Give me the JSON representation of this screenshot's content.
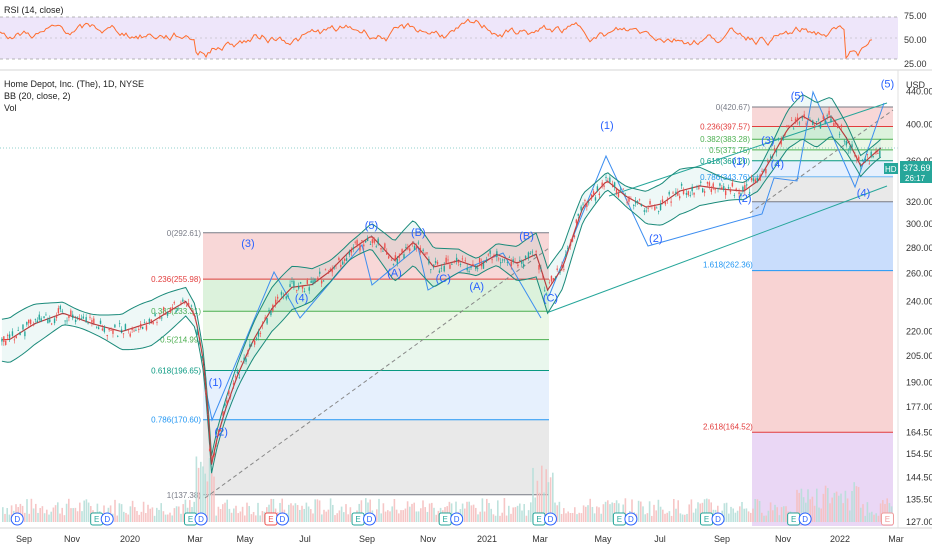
{
  "rsi_panel": {
    "title": "RSI (14, close)",
    "ticks": [
      "75.00",
      "50.00",
      "25.00"
    ],
    "band_color": "#d9c7f3",
    "line_color": "#ff6d2e"
  },
  "main_panel": {
    "title": "Home Depot, Inc. (The), 1D, NYSE",
    "indicator": "BB (20, close, 2)",
    "vol_label": "Vol",
    "currency": "USD",
    "ticker_tag": "HD",
    "last_price": "373.69",
    "countdown": "26:17"
  },
  "chart_data": {
    "type": "line",
    "y_scale": "log",
    "ylim": [
      127,
      460
    ],
    "y_ticks": [
      "440.00",
      "400.00",
      "360.00",
      "320.00",
      "300.00",
      "280.00",
      "260.00",
      "240.00",
      "220.00",
      "205.00",
      "190.00",
      "177.00",
      "164.50",
      "154.50",
      "144.50",
      "135.50",
      "127.00"
    ],
    "x_ticks": [
      "Sep",
      "Nov",
      "2020",
      "Mar",
      "May",
      "Jul",
      "Sep",
      "Nov",
      "2021",
      "Mar",
      "May",
      "Jul",
      "Sep",
      "Nov",
      "2022",
      "Mar"
    ],
    "series": [
      {
        "values": [
          {
            "x": "2019-08-20",
            "y": 215
          },
          {
            "x": "2019-09-15",
            "y": 225
          },
          {
            "x": "2019-10-15",
            "y": 232
          },
          {
            "x": "2019-11-15",
            "y": 225
          },
          {
            "x": "2019-12-15",
            "y": 220
          },
          {
            "x": "2020-01-15",
            "y": 226
          },
          {
            "x": "2020-02-20",
            "y": 240
          },
          {
            "x": "2020-03-01",
            "y": 230
          },
          {
            "x": "2020-03-10",
            "y": 200
          },
          {
            "x": "2020-03-18",
            "y": 150
          },
          {
            "x": "2020-03-24",
            "y": 162
          },
          {
            "x": "2020-04-01",
            "y": 175
          },
          {
            "x": "2020-04-15",
            "y": 195
          },
          {
            "x": "2020-05-01",
            "y": 215
          },
          {
            "x": "2020-05-20",
            "y": 235
          },
          {
            "x": "2020-06-10",
            "y": 250
          },
          {
            "x": "2020-07-01",
            "y": 252
          },
          {
            "x": "2020-07-20",
            "y": 262
          },
          {
            "x": "2020-08-10",
            "y": 278
          },
          {
            "x": "2020-09-01",
            "y": 290
          },
          {
            "x": "2020-09-25",
            "y": 270
          },
          {
            "x": "2020-10-15",
            "y": 285
          },
          {
            "x": "2020-11-05",
            "y": 265
          },
          {
            "x": "2020-12-01",
            "y": 270
          },
          {
            "x": "2020-12-20",
            "y": 265
          },
          {
            "x": "2021-01-10",
            "y": 275
          },
          {
            "x": "2021-01-31",
            "y": 268
          },
          {
            "x": "2021-02-20",
            "y": 275
          },
          {
            "x": "2021-03-04",
            "y": 248
          },
          {
            "x": "2021-03-20",
            "y": 265
          },
          {
            "x": "2021-04-10",
            "y": 315
          },
          {
            "x": "2021-05-05",
            "y": 340
          },
          {
            "x": "2021-05-25",
            "y": 325
          },
          {
            "x": "2021-06-15",
            "y": 315
          },
          {
            "x": "2021-07-01",
            "y": 318
          },
          {
            "x": "2021-07-20",
            "y": 330
          },
          {
            "x": "2021-08-10",
            "y": 335
          },
          {
            "x": "2021-09-01",
            "y": 332
          },
          {
            "x": "2021-09-25",
            "y": 330
          },
          {
            "x": "2021-10-10",
            "y": 340
          },
          {
            "x": "2021-10-25",
            "y": 365
          },
          {
            "x": "2021-11-10",
            "y": 395
          },
          {
            "x": "2021-11-25",
            "y": 410
          },
          {
            "x": "2021-12-10",
            "y": 400
          },
          {
            "x": "2021-12-25",
            "y": 410
          },
          {
            "x": "2022-01-10",
            "y": 385
          },
          {
            "x": "2022-01-25",
            "y": 355
          },
          {
            "x": "2022-02-05",
            "y": 365
          },
          {
            "x": "2022-02-15",
            "y": 373.69
          }
        ]
      }
    ]
  },
  "fib_2020": {
    "levels": [
      {
        "label": "0(292.61)",
        "price": 292.61,
        "color": "#787b86",
        "fill": "#f5c6c6"
      },
      {
        "label": "0.236(255.98)",
        "price": 255.98,
        "color": "#e23c3c",
        "fill": "#cdeccd"
      },
      {
        "label": "0.382(233.31)",
        "price": 233.31,
        "color": "#4caf50",
        "fill": "#e3f3dc"
      },
      {
        "label": "0.5(214.99)",
        "price": 214.99,
        "color": "#4caf50",
        "fill": "#dff3e6"
      },
      {
        "label": "0.618(196.65)",
        "price": 196.65,
        "color": "#089981",
        "fill": "#dbeafc"
      },
      {
        "label": "0.786(170.60)",
        "price": 170.6,
        "color": "#2196f3",
        "fill": "#e0e0e0"
      },
      {
        "label": "1(137.38)",
        "price": 137.38,
        "color": "#787b86",
        "fill": "none"
      }
    ]
  },
  "fib_2021": {
    "levels": [
      {
        "label": "0(420.67)",
        "price": 420.67,
        "color": "#787b86",
        "fill": "#f5c6c6"
      },
      {
        "label": "0.236(397.57)",
        "price": 397.57,
        "color": "#e23c3c",
        "fill": "#cdeccd"
      },
      {
        "label": "0.382(383.28)",
        "price": 383.28,
        "color": "#4caf50",
        "fill": "#e3f3dc"
      },
      {
        "label": "0.5(371.75)",
        "price": 371.75,
        "color": "#4caf50",
        "fill": "#dff3e6"
      },
      {
        "label": "0.618(360.20)",
        "price": 360.2,
        "color": "#089981",
        "fill": "#dbeafc"
      },
      {
        "label": "0.786(343.76)",
        "price": 343.76,
        "color": "#2196f3",
        "fill": "#e0e0e0"
      }
    ],
    "extensions": [
      {
        "label": "1.618(262.36)",
        "price": 262.36,
        "color": "#2196f3"
      },
      {
        "label": "2.618(164.52)",
        "price": 164.52,
        "color": "#e23c3c"
      }
    ]
  },
  "wave_labels": [
    {
      "text": "(1)",
      "x": "2020-03-22",
      "y": 188
    },
    {
      "text": "(2)",
      "x": "2020-03-28",
      "y": 163
    },
    {
      "text": "(3)",
      "x": "2020-04-25",
      "y": 281
    },
    {
      "text": "(4)",
      "x": "2020-06-20",
      "y": 240
    },
    {
      "text": "(5)",
      "x": "2020-09-01",
      "y": 296
    },
    {
      "text": "(A)",
      "x": "2020-09-25",
      "y": 258
    },
    {
      "text": "(B)",
      "x": "2020-10-20",
      "y": 290
    },
    {
      "text": "(C)",
      "x": "2020-11-15",
      "y": 254
    },
    {
      "text": "(A)",
      "x": "2020-12-20",
      "y": 248
    },
    {
      "text": "(B)",
      "x": "2021-02-10",
      "y": 287
    },
    {
      "text": "(C)",
      "x": "2021-03-07",
      "y": 240
    },
    {
      "text": "(1)",
      "x": "2021-05-05",
      "y": 395
    },
    {
      "text": "(2)",
      "x": "2021-06-25",
      "y": 285
    },
    {
      "text": "(1)",
      "x": "2021-09-20",
      "y": 356
    },
    {
      "text": "(2)",
      "x": "2021-09-26",
      "y": 320
    },
    {
      "text": "(3)",
      "x": "2021-10-20",
      "y": 378
    },
    {
      "text": "(4)",
      "x": "2021-10-30",
      "y": 353
    },
    {
      "text": "(5)",
      "x": "2021-11-20",
      "y": 430
    },
    {
      "text": "(4)",
      "x": "2022-01-28",
      "y": 325
    },
    {
      "text": "(5)",
      "x": "2022-02-22",
      "y": 445
    }
  ],
  "events": [
    {
      "text": "D",
      "x": "2019-08-28",
      "type": "dividend"
    },
    {
      "text": "E",
      "x": "2019-11-19",
      "type": "earnings"
    },
    {
      "text": "D",
      "x": "2019-11-30",
      "type": "dividend"
    },
    {
      "text": "E",
      "x": "2020-02-25",
      "type": "earnings"
    },
    {
      "text": "D",
      "x": "2020-03-07",
      "type": "dividend"
    },
    {
      "text": "E",
      "x": "2020-05-19",
      "type": "earnings-red"
    },
    {
      "text": "D",
      "x": "2020-05-31",
      "type": "dividend"
    },
    {
      "text": "E",
      "x": "2020-08-18",
      "type": "earnings"
    },
    {
      "text": "D",
      "x": "2020-08-30",
      "type": "dividend"
    },
    {
      "text": "E",
      "x": "2020-11-17",
      "type": "earnings"
    },
    {
      "text": "D",
      "x": "2020-11-29",
      "type": "dividend"
    },
    {
      "text": "E",
      "x": "2021-02-23",
      "type": "earnings"
    },
    {
      "text": "D",
      "x": "2021-03-07",
      "type": "dividend"
    },
    {
      "text": "E",
      "x": "2021-05-18",
      "type": "earnings"
    },
    {
      "text": "D",
      "x": "2021-05-30",
      "type": "dividend"
    },
    {
      "text": "E",
      "x": "2021-08-17",
      "type": "earnings"
    },
    {
      "text": "D",
      "x": "2021-08-29",
      "type": "dividend"
    },
    {
      "text": "E",
      "x": "2021-11-16",
      "type": "earnings"
    },
    {
      "text": "D",
      "x": "2021-11-28",
      "type": "dividend"
    },
    {
      "text": "E",
      "x": "2022-02-22",
      "type": "earnings-outline"
    }
  ]
}
